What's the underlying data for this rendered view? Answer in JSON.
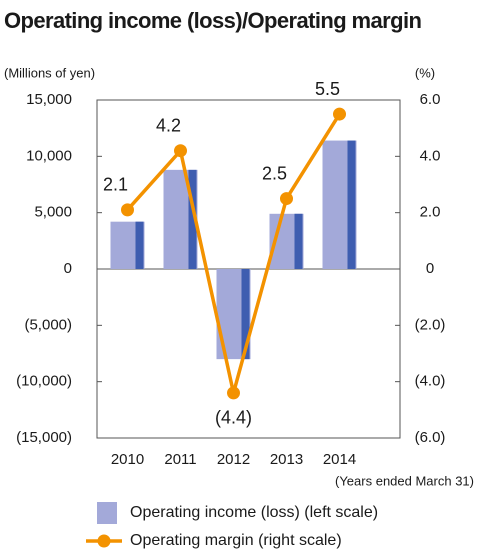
{
  "chart_data": {
    "type": "bar",
    "title": "Operating income (loss)/Operating margin",
    "y_label": "(Millions of yen)",
    "y2_label": "(%)",
    "x_note": "(Years ended March 31)",
    "categories": [
      "2010",
      "2011",
      "2012",
      "2013",
      "2014"
    ],
    "series": [
      {
        "name": "Operating income (loss) (left scale)",
        "type": "bar",
        "color": "#a3a9d9",
        "edge_color": "#3e5db0",
        "values": [
          4200,
          8800,
          -8000,
          4900,
          11400
        ]
      },
      {
        "name": "Operating margin (right scale)",
        "type": "line",
        "axis": "y2",
        "color": "#f39200",
        "values": [
          2.1,
          4.2,
          -4.4,
          2.5,
          5.5
        ],
        "value_labels": [
          "2.1",
          "4.2",
          "(4.4)",
          "2.5",
          "5.5"
        ]
      }
    ],
    "ylim": [
      -15000,
      15000
    ],
    "yticks": [
      {
        "value": 15000,
        "label": "15,000"
      },
      {
        "value": 10000,
        "label": "10,000"
      },
      {
        "value": 5000,
        "label": "5,000"
      },
      0,
      {
        "value": -5000,
        "label": "(5,000)"
      },
      {
        "value": -10000,
        "label": "(10,000)"
      },
      {
        "value": -15000,
        "label": "(15,000)"
      }
    ],
    "y2lim": [
      -6,
      6
    ],
    "y2ticks": [
      {
        "value": 6,
        "label": "6.0"
      },
      {
        "value": 4,
        "label": "4.0"
      },
      {
        "value": 2,
        "label": "2.0"
      },
      0,
      {
        "value": -2,
        "label": "(2.0)"
      },
      {
        "value": -4,
        "label": "(4.0)"
      },
      {
        "value": -6,
        "label": "(6.0)"
      }
    ]
  }
}
